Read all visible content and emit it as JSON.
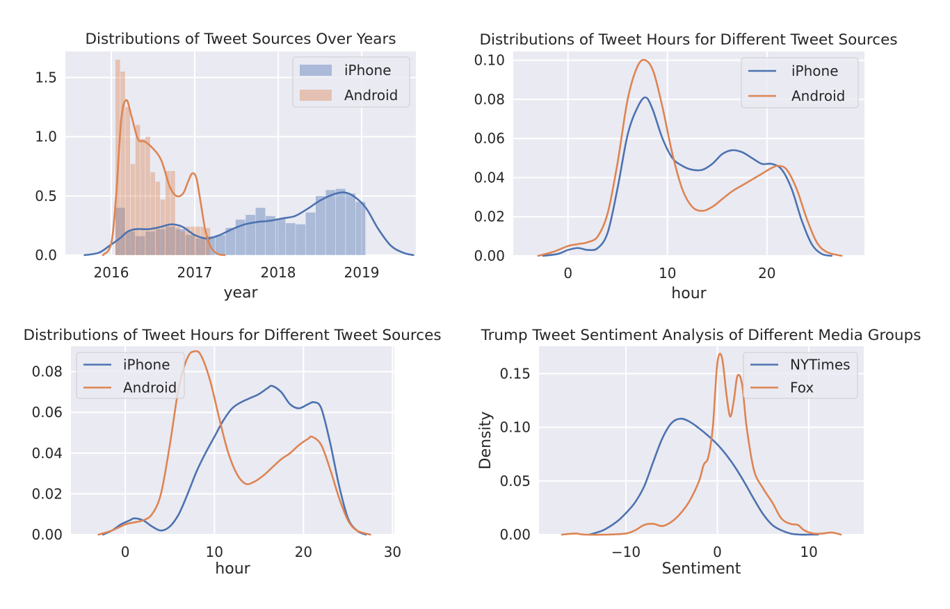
{
  "chart_data": [
    {
      "type": "bar",
      "title": "Distributions of Tweet Sources Over Years",
      "xlabel": "year",
      "ylabel": "",
      "xlim": [
        2015.45,
        2019.65
      ],
      "ylim": [
        0,
        1.72
      ],
      "xticks": [
        2016,
        2017,
        2018,
        2019
      ],
      "xtick_labels": [
        "2016",
        "2017",
        "2018",
        "2019"
      ],
      "yticks": [
        0,
        0.5,
        1.0,
        1.5
      ],
      "ytick_labels": [
        "0.0",
        "0.5",
        "1.0",
        "1.5"
      ],
      "grid": true,
      "legend_position": "top-right",
      "legend": [
        {
          "label": "iPhone",
          "color": "#4c72b0",
          "kind": "patch"
        },
        {
          "label": "Android",
          "color": "#dd8452",
          "kind": "patch"
        }
      ],
      "histograms": [
        {
          "name": "iPhone",
          "color": "#4c72b0",
          "bin_edges": [
            2016.05,
            2016.17,
            2016.29,
            2016.41,
            2016.53,
            2016.65,
            2016.77,
            2016.89,
            2017.01,
            2017.13,
            2017.25,
            2017.37,
            2017.49,
            2017.61,
            2017.73,
            2017.85,
            2017.97,
            2018.09,
            2018.21,
            2018.33,
            2018.45,
            2018.57,
            2018.69,
            2018.81,
            2018.93,
            2019.05
          ],
          "values": [
            0.4,
            0.2,
            0.16,
            0.2,
            0.22,
            0.24,
            0.22,
            0.17,
            0.14,
            0.16,
            0.17,
            0.23,
            0.3,
            0.34,
            0.4,
            0.33,
            0.31,
            0.27,
            0.26,
            0.36,
            0.5,
            0.55,
            0.56,
            0.52,
            0.45
          ]
        },
        {
          "name": "Android",
          "color": "#dd8452",
          "bin_edges": [
            2016.05,
            2016.11,
            2016.17,
            2016.23,
            2016.29,
            2016.35,
            2016.41,
            2016.47,
            2016.53,
            2016.59,
            2016.65,
            2016.71,
            2016.77,
            2016.83,
            2016.89,
            2016.95,
            2017.01,
            2017.07,
            2017.13,
            2017.19
          ],
          "values": [
            1.65,
            1.55,
            1.25,
            0.77,
            1.1,
            0.98,
            1.0,
            0.7,
            0.62,
            0.47,
            0.71,
            0.71,
            0.24,
            0.2,
            0.24,
            0.24,
            0.24,
            0.24,
            0.23
          ]
        }
      ],
      "series": [
        {
          "name": "iPhone",
          "color": "#4c72b0",
          "x": [
            2015.68,
            2015.85,
            2015.98,
            2016.1,
            2016.2,
            2016.3,
            2016.45,
            2016.6,
            2016.72,
            2016.85,
            2017.0,
            2017.15,
            2017.3,
            2017.45,
            2017.6,
            2017.75,
            2017.9,
            2018.05,
            2018.2,
            2018.35,
            2018.5,
            2018.65,
            2018.78,
            2018.9,
            2019.05,
            2019.2,
            2019.35,
            2019.5,
            2019.62
          ],
          "y": [
            0.0,
            0.02,
            0.08,
            0.14,
            0.2,
            0.22,
            0.22,
            0.24,
            0.26,
            0.24,
            0.17,
            0.14,
            0.17,
            0.22,
            0.26,
            0.28,
            0.29,
            0.31,
            0.33,
            0.39,
            0.46,
            0.51,
            0.53,
            0.5,
            0.4,
            0.22,
            0.08,
            0.02,
            0.0
          ]
        },
        {
          "name": "Android",
          "color": "#dd8452",
          "x": [
            2015.9,
            2016.0,
            2016.06,
            2016.12,
            2016.18,
            2016.24,
            2016.32,
            2016.4,
            2016.5,
            2016.6,
            2016.7,
            2016.78,
            2016.86,
            2016.92,
            2016.97,
            2017.02,
            2017.07,
            2017.13,
            2017.2,
            2017.28,
            2017.36
          ],
          "y": [
            0.0,
            0.1,
            0.52,
            1.15,
            1.31,
            1.18,
            0.98,
            0.96,
            0.9,
            0.8,
            0.58,
            0.5,
            0.52,
            0.62,
            0.69,
            0.65,
            0.45,
            0.2,
            0.06,
            0.01,
            0.0
          ]
        }
      ]
    },
    {
      "type": "line",
      "title": "Distributions of Tweet Hours for Different Tweet Sources",
      "xlabel": "hour",
      "ylabel": "",
      "xlim": [
        -5.5,
        29.8
      ],
      "ylim": [
        0,
        0.1045
      ],
      "xticks": [
        0,
        10,
        20
      ],
      "xtick_labels": [
        "0",
        "10",
        "20"
      ],
      "yticks": [
        0,
        0.02,
        0.04,
        0.06,
        0.08,
        0.1
      ],
      "ytick_labels": [
        "0.00",
        "0.02",
        "0.04",
        "0.06",
        "0.08",
        "0.10"
      ],
      "grid": true,
      "legend_position": "top-right",
      "legend": [
        {
          "label": "iPhone",
          "color": "#4c72b0",
          "kind": "line"
        },
        {
          "label": "Android",
          "color": "#dd8452",
          "kind": "line"
        }
      ],
      "series": [
        {
          "name": "iPhone",
          "color": "#4c72b0",
          "x": [
            -2.5,
            -1,
            0,
            1,
            2,
            3,
            4,
            5,
            6,
            7,
            7.8,
            8.5,
            9.5,
            10.5,
            11.5,
            12.5,
            13.5,
            14.5,
            15.5,
            16.5,
            17.5,
            18.5,
            19.5,
            20.5,
            21.5,
            22.5,
            23.5,
            24.5,
            25.5,
            26.5
          ],
          "y": [
            0.0,
            0.001,
            0.003,
            0.004,
            0.003,
            0.004,
            0.012,
            0.035,
            0.062,
            0.076,
            0.081,
            0.075,
            0.06,
            0.05,
            0.046,
            0.044,
            0.044,
            0.047,
            0.052,
            0.054,
            0.053,
            0.05,
            0.047,
            0.047,
            0.044,
            0.034,
            0.018,
            0.006,
            0.001,
            0.0
          ]
        },
        {
          "name": "Android",
          "color": "#dd8452",
          "x": [
            -3,
            -1.5,
            0,
            1,
            2,
            3,
            4,
            5,
            6,
            7,
            7.8,
            8.6,
            9.5,
            10.5,
            11.5,
            12.5,
            13.5,
            14.5,
            15.5,
            16.5,
            17.5,
            18.5,
            19.5,
            20.5,
            21.2,
            22,
            23,
            24,
            25,
            26,
            27.5
          ],
          "y": [
            0.0,
            0.002,
            0.005,
            0.006,
            0.007,
            0.01,
            0.022,
            0.048,
            0.08,
            0.097,
            0.1,
            0.094,
            0.076,
            0.052,
            0.034,
            0.025,
            0.023,
            0.025,
            0.029,
            0.033,
            0.036,
            0.039,
            0.042,
            0.045,
            0.046,
            0.044,
            0.034,
            0.019,
            0.007,
            0.002,
            0.0
          ]
        }
      ]
    },
    {
      "type": "line",
      "title": "Distributions of Tweet Hours for Different Tweet Sources",
      "xlabel": "hour",
      "ylabel": "",
      "xlim": [
        -6.1,
        30.2
      ],
      "ylim": [
        0,
        0.0925
      ],
      "xticks": [
        0,
        10,
        20,
        30
      ],
      "xtick_labels": [
        "0",
        "10",
        "20",
        "30"
      ],
      "yticks": [
        0,
        0.02,
        0.04,
        0.06,
        0.08
      ],
      "ytick_labels": [
        "0.00",
        "0.02",
        "0.04",
        "0.06",
        "0.08"
      ],
      "grid": true,
      "legend_position": "top-left",
      "legend": [
        {
          "label": "iPhone",
          "color": "#4c72b0",
          "kind": "line"
        },
        {
          "label": "Android",
          "color": "#dd8452",
          "kind": "line"
        }
      ],
      "series": [
        {
          "name": "iPhone",
          "color": "#4c72b0",
          "x": [
            -2.5,
            -1.5,
            -0.5,
            0.5,
            1,
            2,
            3,
            4,
            5,
            6,
            7,
            8,
            9,
            10,
            11,
            12,
            13,
            14,
            15,
            16,
            16.5,
            17.5,
            18.5,
            19.5,
            20.5,
            21.2,
            22,
            23,
            24,
            25,
            26,
            27
          ],
          "y": [
            0.0,
            0.002,
            0.005,
            0.007,
            0.008,
            0.007,
            0.004,
            0.002,
            0.004,
            0.01,
            0.02,
            0.031,
            0.04,
            0.048,
            0.056,
            0.062,
            0.065,
            0.067,
            0.069,
            0.072,
            0.073,
            0.07,
            0.064,
            0.062,
            0.064,
            0.065,
            0.062,
            0.045,
            0.024,
            0.008,
            0.002,
            0.0
          ]
        },
        {
          "name": "Android",
          "color": "#dd8452",
          "x": [
            -3,
            -1.5,
            0,
            1,
            2,
            3,
            4,
            5,
            6,
            7,
            7.8,
            8.5,
            9.5,
            10.5,
            11.5,
            12.5,
            13.5,
            14.5,
            15.5,
            16.5,
            17.5,
            18.5,
            19.5,
            20.5,
            21,
            22,
            23,
            24,
            25,
            26,
            27.5
          ],
          "y": [
            0.0,
            0.002,
            0.005,
            0.006,
            0.007,
            0.01,
            0.02,
            0.044,
            0.072,
            0.087,
            0.09,
            0.088,
            0.076,
            0.058,
            0.041,
            0.03,
            0.025,
            0.026,
            0.029,
            0.033,
            0.037,
            0.04,
            0.044,
            0.047,
            0.048,
            0.044,
            0.032,
            0.018,
            0.007,
            0.002,
            0.0
          ]
        }
      ]
    },
    {
      "type": "line",
      "title": "Trump Tweet Sentiment Analysis of Different Media Groups",
      "xlabel": "Sentiment",
      "ylabel": "Density",
      "xlim": [
        -19.5,
        16.0
      ],
      "ylim": [
        0,
        0.1755
      ],
      "xticks": [
        -10,
        0,
        10
      ],
      "xtick_labels": [
        "−10",
        "0",
        "10"
      ],
      "yticks": [
        0,
        0.05,
        0.1,
        0.15
      ],
      "ytick_labels": [
        "0.00",
        "0.05",
        "0.10",
        "0.15"
      ],
      "grid": true,
      "legend_position": "top-right",
      "legend": [
        {
          "label": "NYTimes",
          "color": "#4c72b0",
          "kind": "line"
        },
        {
          "label": "Fox",
          "color": "#dd8452",
          "kind": "line"
        }
      ],
      "series": [
        {
          "name": "NYTimes",
          "color": "#4c72b0",
          "x": [
            -14,
            -12.5,
            -11,
            -10,
            -9,
            -8,
            -7,
            -6,
            -5,
            -4,
            -3,
            -2,
            -1,
            0,
            1,
            2,
            3,
            4,
            5,
            6,
            7,
            8,
            9,
            10,
            11
          ],
          "y": [
            0.0,
            0.004,
            0.012,
            0.02,
            0.03,
            0.045,
            0.068,
            0.09,
            0.104,
            0.108,
            0.105,
            0.099,
            0.092,
            0.084,
            0.074,
            0.062,
            0.048,
            0.033,
            0.019,
            0.009,
            0.004,
            0.001,
            0.0,
            0.0,
            0.0
          ]
        },
        {
          "name": "Fox",
          "color": "#dd8452",
          "x": [
            -17,
            -15.5,
            -14.5,
            -12,
            -10,
            -9,
            -8,
            -7,
            -6,
            -5,
            -4,
            -3,
            -2,
            -1.5,
            -1,
            -0.5,
            0,
            0.5,
            1,
            1.4,
            1.8,
            2.2,
            2.7,
            3.2,
            4,
            5,
            6,
            7,
            8,
            8.8,
            9.5,
            10.5,
            11.5,
            12.5,
            13.5
          ],
          "y": [
            0.0,
            0.001,
            0.0,
            0.0,
            0.001,
            0.004,
            0.009,
            0.01,
            0.008,
            0.012,
            0.02,
            0.032,
            0.05,
            0.065,
            0.072,
            0.1,
            0.16,
            0.165,
            0.13,
            0.11,
            0.125,
            0.148,
            0.14,
            0.1,
            0.06,
            0.043,
            0.03,
            0.015,
            0.01,
            0.009,
            0.004,
            0.001,
            0.001,
            0.002,
            0.0
          ]
        }
      ]
    }
  ]
}
